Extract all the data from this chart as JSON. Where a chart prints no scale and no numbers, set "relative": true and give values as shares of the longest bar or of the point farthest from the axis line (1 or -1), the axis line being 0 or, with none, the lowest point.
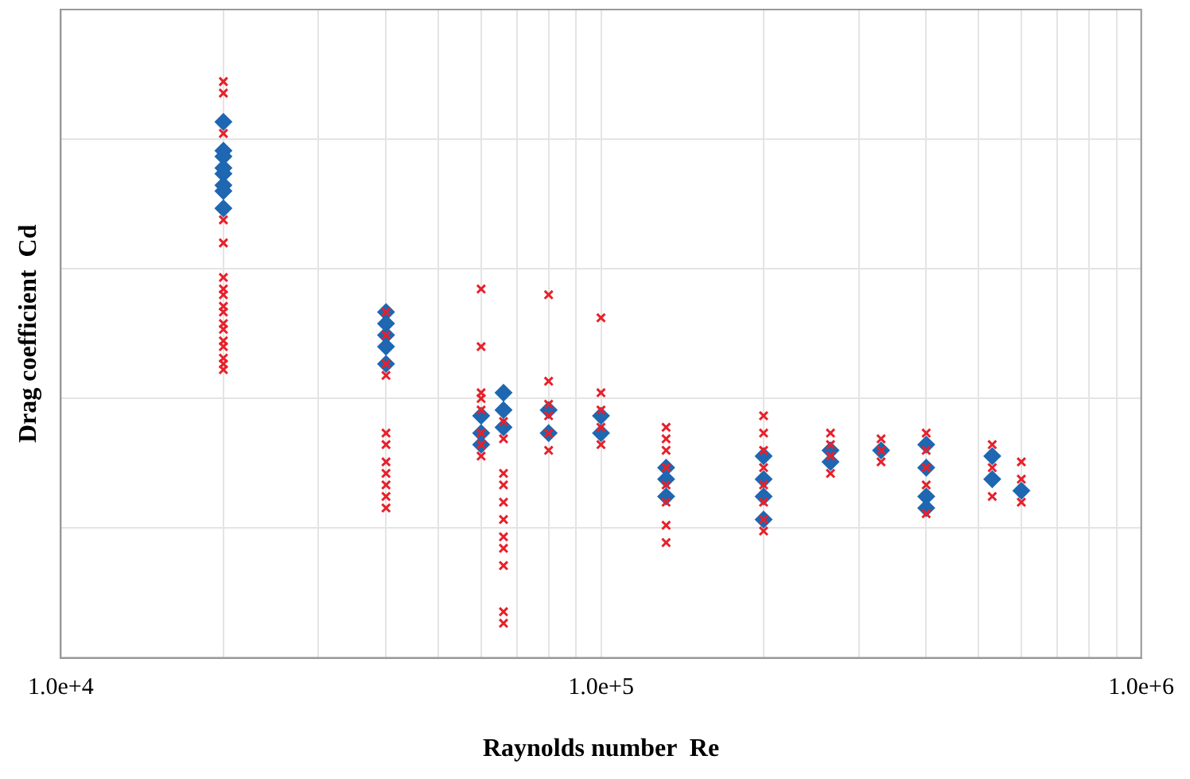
{
  "chart_data": {
    "type": "scatter",
    "xlabel": "Raynolds number  Re",
    "ylabel": "Drag coefficient  Cd",
    "relative": true,
    "log": "x",
    "grid": true,
    "legend": false,
    "xlim": [
      10000,
      1000000
    ],
    "xticks": [
      {
        "value": 10000,
        "label": "1.0e+4"
      },
      {
        "value": 20000,
        "label": null
      },
      {
        "value": 30000,
        "label": null
      },
      {
        "value": 40000,
        "label": null
      },
      {
        "value": 50000,
        "label": null
      },
      {
        "value": 60000,
        "label": null
      },
      {
        "value": 70000,
        "label": null
      },
      {
        "value": 80000,
        "label": null
      },
      {
        "value": 90000,
        "label": null
      },
      {
        "value": 100000,
        "label": "1.0e+5"
      },
      {
        "value": 200000,
        "label": null
      },
      {
        "value": 300000,
        "label": null
      },
      {
        "value": 400000,
        "label": null
      },
      {
        "value": 500000,
        "label": null
      },
      {
        "value": 600000,
        "label": null
      },
      {
        "value": 700000,
        "label": null
      },
      {
        "value": 800000,
        "label": null
      },
      {
        "value": 900000,
        "label": null
      },
      {
        "value": 1000000,
        "label": "1.0e+6"
      }
    ],
    "series": [
      {
        "color": "#1f67b1",
        "marker": "diamond",
        "x": [
          20000,
          20000,
          20000,
          20000,
          20000,
          20000,
          20000,
          20000,
          40000,
          40000,
          40000,
          40000,
          40000,
          60000,
          60000,
          60000,
          66000,
          66000,
          66000,
          80000,
          80000,
          100000,
          100000,
          132000,
          132000,
          132000,
          200000,
          200000,
          200000,
          200000,
          266000,
          266000,
          330000,
          400000,
          400000,
          400000,
          400000,
          530000,
          530000,
          600000
        ],
        "values": [
          0.93,
          0.88,
          0.87,
          0.85,
          0.84,
          0.82,
          0.81,
          0.78,
          0.6,
          0.58,
          0.56,
          0.54,
          0.51,
          0.42,
          0.39,
          0.37,
          0.46,
          0.43,
          0.4,
          0.43,
          0.39,
          0.42,
          0.39,
          0.33,
          0.31,
          0.28,
          0.35,
          0.31,
          0.28,
          0.24,
          0.36,
          0.34,
          0.36,
          0.37,
          0.33,
          0.28,
          0.26,
          0.35,
          0.31,
          0.29
        ]
      },
      {
        "color": "#e8202a",
        "marker": "cross",
        "x": [
          20000,
          20000,
          20000,
          20000,
          20000,
          20000,
          20000,
          20000,
          20000,
          20000,
          20000,
          20000,
          20000,
          20000,
          20000,
          20000,
          20000,
          40000,
          40000,
          40000,
          40000,
          40000,
          40000,
          40000,
          40000,
          40000,
          40000,
          40000,
          60000,
          60000,
          60000,
          60000,
          60000,
          60000,
          60000,
          60000,
          66000,
          66000,
          66000,
          66000,
          66000,
          66000,
          66000,
          66000,
          66000,
          66000,
          66000,
          80000,
          80000,
          80000,
          80000,
          80000,
          80000,
          100000,
          100000,
          100000,
          100000,
          100000,
          132000,
          132000,
          132000,
          132000,
          132000,
          132000,
          132000,
          132000,
          200000,
          200000,
          200000,
          200000,
          200000,
          200000,
          200000,
          200000,
          266000,
          266000,
          266000,
          266000,
          330000,
          330000,
          330000,
          400000,
          400000,
          400000,
          400000,
          400000,
          530000,
          530000,
          530000,
          600000,
          600000,
          600000
        ],
        "values": [
          1.0,
          0.98,
          0.91,
          0.76,
          0.72,
          0.66,
          0.64,
          0.63,
          0.61,
          0.6,
          0.58,
          0.57,
          0.55,
          0.54,
          0.52,
          0.51,
          0.5,
          0.6,
          0.56,
          0.51,
          0.49,
          0.39,
          0.37,
          0.34,
          0.32,
          0.3,
          0.28,
          0.26,
          0.64,
          0.54,
          0.46,
          0.45,
          0.43,
          0.39,
          0.37,
          0.35,
          0.41,
          0.38,
          0.32,
          0.3,
          0.27,
          0.24,
          0.21,
          0.19,
          0.16,
          0.08,
          0.06,
          0.63,
          0.48,
          0.44,
          0.42,
          0.39,
          0.36,
          0.59,
          0.46,
          0.43,
          0.4,
          0.37,
          0.4,
          0.38,
          0.36,
          0.33,
          0.3,
          0.27,
          0.23,
          0.2,
          0.42,
          0.39,
          0.36,
          0.33,
          0.3,
          0.27,
          0.24,
          0.22,
          0.39,
          0.37,
          0.35,
          0.32,
          0.38,
          0.36,
          0.34,
          0.39,
          0.36,
          0.33,
          0.3,
          0.25,
          0.37,
          0.33,
          0.28,
          0.34,
          0.31,
          0.27
        ]
      }
    ]
  }
}
